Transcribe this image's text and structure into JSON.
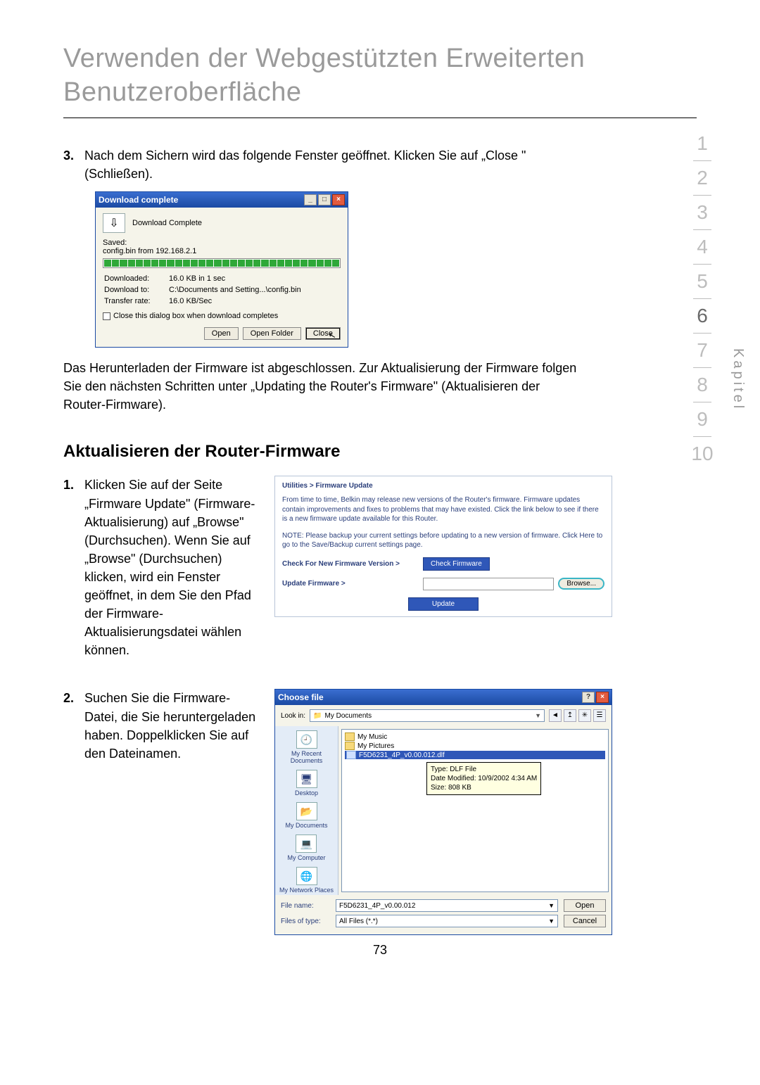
{
  "page": {
    "title": "Verwenden der Webgestützten Erweiterten Benutzeroberfläche",
    "number": "73",
    "chapter_label": "Kapitel"
  },
  "step3": {
    "num": "3.",
    "text": "Nach dem Sichern wird das folgende Fenster geöffnet. Klicken Sie auf „Close \" (Schließen).",
    "paragraph_after": "Das Herunterladen der Firmware ist abgeschlossen. Zur Aktualisierung der Firmware folgen Sie den nächsten Schritten unter „Updating the Router's Firmware\" (Aktualisieren der Router-Firmware)."
  },
  "download_dialog": {
    "title": "Download complete",
    "status": "Download Complete",
    "saved_label": "Saved:",
    "saved_value": "config.bin from 192.168.2.1",
    "rows": {
      "downloaded_label": "Downloaded:",
      "downloaded_value": "16.0 KB in 1 sec",
      "to_label": "Download to:",
      "to_value": "C:\\Documents and Setting...\\config.bin",
      "rate_label": "Transfer rate:",
      "rate_value": "16.0 KB/Sec"
    },
    "checkbox": "Close this dialog box when download completes",
    "buttons": {
      "open": "Open",
      "open_folder": "Open Folder",
      "close": "Close"
    },
    "titlebar": {
      "min": "_",
      "max": "□",
      "close": "×"
    },
    "icon_glyph": "⇩"
  },
  "section2": {
    "heading": "Aktualisieren der Router-Firmware",
    "step1": {
      "num": "1.",
      "text": "Klicken Sie auf der Seite „Firmware Update\" (Firmware-Aktualisierung) auf „Browse\" (Durchsuchen). Wenn Sie auf „Browse\" (Durchsuchen) klicken, wird ein Fenster geöffnet, in dem Sie den Pfad der Firmware-Aktualisierungsdatei wählen können."
    },
    "step2": {
      "num": "2.",
      "text": "Suchen Sie die Firmware-Datei, die Sie heruntergeladen haben. Doppelklicken Sie auf den Dateinamen."
    }
  },
  "firmware_panel": {
    "crumb": "Utilities > Firmware Update",
    "para1": "From time to time, Belkin may release new versions of the Router's firmware. Firmware updates contain improvements and fixes to problems that may have existed. Click the link below to see if there is a new firmware update available for this Router.",
    "para2": "NOTE: Please backup your current settings before updating to a new version of firmware. Click Here to go to the Save/Backup current settings page.",
    "check_label": "Check For New Firmware Version >",
    "check_button": "Check Firmware",
    "update_label": "Update Firmware >",
    "browse_button": "Browse...",
    "update_button": "Update"
  },
  "choose_file": {
    "title": "Choose file",
    "lookin_label": "Look in:",
    "lookin_value": "My Documents",
    "tool_back": "◄",
    "tool_up": "↥",
    "tool_new": "✳",
    "tool_view": "☰",
    "sidebar": {
      "recent": "My Recent Documents",
      "desktop": "Desktop",
      "mydocs": "My Documents",
      "mycomp": "My Computer",
      "mynet": "My Network Places"
    },
    "entries": {
      "music": "My Music",
      "pictures": "My Pictures",
      "file": "F5D6231_4P_v0.00.012.dlf"
    },
    "tooltip": {
      "l1": "Type: DLF File",
      "l2": "Date Modified: 10/9/2002 4:34 AM",
      "l3": "Size: 808 KB"
    },
    "filename_label": "File name:",
    "filename_value": "F5D6231_4P_v0.00.012",
    "filetype_label": "Files of type:",
    "filetype_value": "All Files (*.*)",
    "open_btn": "Open",
    "cancel_btn": "Cancel",
    "titlebar": {
      "help": "?",
      "close": "×"
    },
    "folder_glyph": "📁"
  },
  "nav": {
    "items": [
      "1",
      "2",
      "3",
      "4",
      "5",
      "6",
      "7",
      "8",
      "9",
      "10"
    ],
    "active_index": 5
  }
}
